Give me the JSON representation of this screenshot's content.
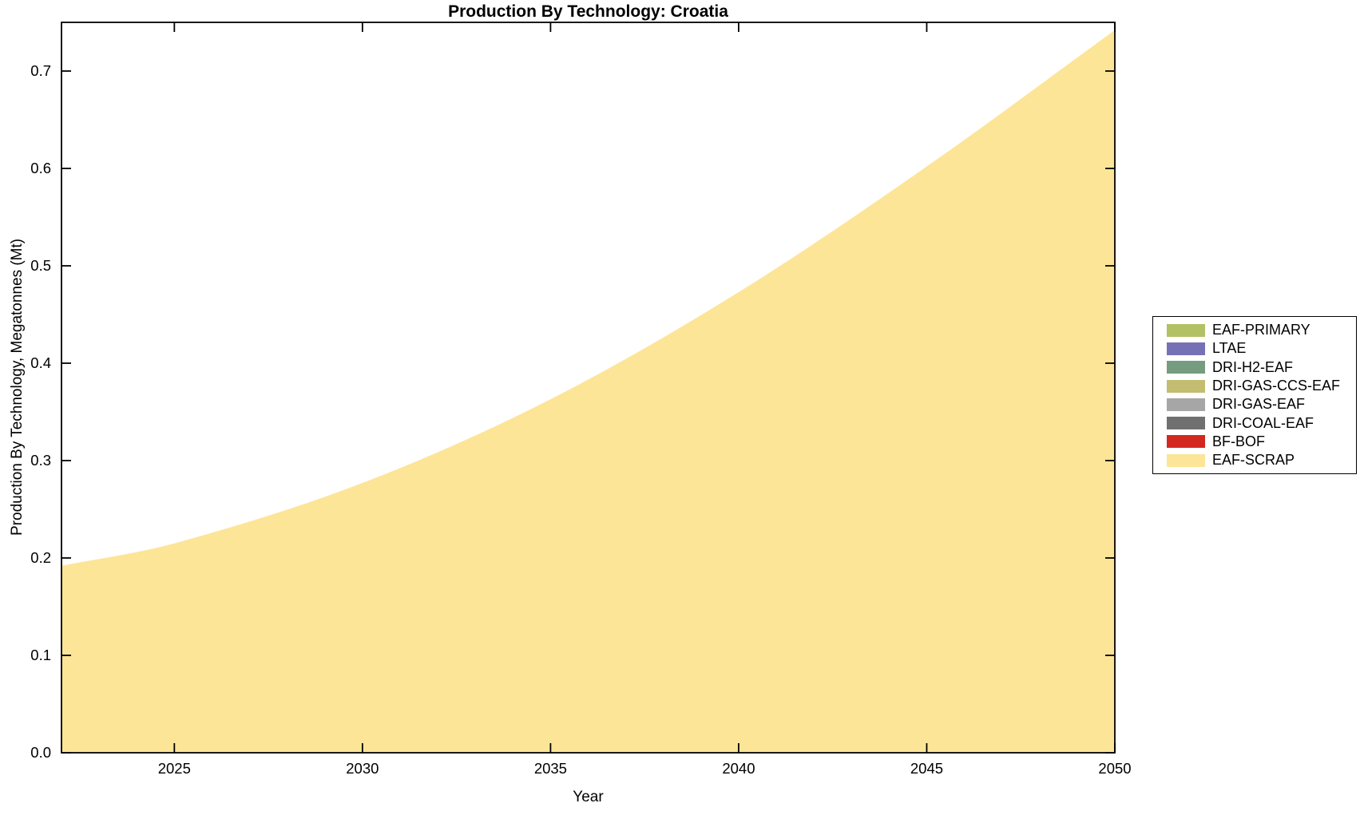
{
  "title": "Production By Technology: Croatia",
  "axes": {
    "xlabel": "Year",
    "ylabel": "Production By Technology, Megatonnes (Mt)",
    "x_ticks": [
      "2025",
      "2030",
      "2035",
      "2040",
      "2045",
      "2050"
    ],
    "y_ticks": [
      "0.0",
      "0.1",
      "0.2",
      "0.3",
      "0.4",
      "0.5",
      "0.6",
      "0.7"
    ]
  },
  "legend": {
    "items": [
      {
        "label": "EAF-PRIMARY",
        "color": "#B2C164"
      },
      {
        "label": "LTAE",
        "color": "#7671B7"
      },
      {
        "label": "DRI-H2-EAF",
        "color": "#759C7F"
      },
      {
        "label": "DRI-GAS-CCS-EAF",
        "color": "#C2BD70"
      },
      {
        "label": "DRI-GAS-EAF",
        "color": "#A6A6A6"
      },
      {
        "label": "DRI-COAL-EAF",
        "color": "#707070"
      },
      {
        "label": "BF-BOF",
        "color": "#D22820"
      },
      {
        "label": "EAF-SCRAP",
        "color": "#FDE598"
      }
    ]
  },
  "chart_data": {
    "type": "area",
    "title": "Production By Technology: Croatia",
    "xlabel": "Year",
    "ylabel": "Production By Technology, Megatonnes (Mt)",
    "x": [
      2022,
      2025,
      2030,
      2035,
      2040,
      2045,
      2050
    ],
    "series": [
      {
        "name": "EAF-PRIMARY",
        "color": "#B2C164",
        "values": [
          0,
          0,
          0,
          0,
          0,
          0,
          0
        ]
      },
      {
        "name": "LTAE",
        "color": "#7671B7",
        "values": [
          0,
          0,
          0,
          0,
          0,
          0,
          0
        ]
      },
      {
        "name": "DRI-H2-EAF",
        "color": "#759C7F",
        "values": [
          0,
          0,
          0,
          0,
          0,
          0,
          0
        ]
      },
      {
        "name": "DRI-GAS-CCS-EAF",
        "color": "#C2BD70",
        "values": [
          0,
          0,
          0,
          0,
          0,
          0,
          0
        ]
      },
      {
        "name": "DRI-GAS-EAF",
        "color": "#A6A6A6",
        "values": [
          0,
          0,
          0,
          0,
          0,
          0,
          0
        ]
      },
      {
        "name": "DRI-COAL-EAF",
        "color": "#707070",
        "values": [
          0,
          0,
          0,
          0,
          0,
          0,
          0
        ]
      },
      {
        "name": "BF-BOF",
        "color": "#D22820",
        "values": [
          0,
          0,
          0,
          0,
          0,
          0,
          0
        ]
      },
      {
        "name": "EAF-SCRAP",
        "color": "#FDE598",
        "values": [
          0.192,
          0.215,
          0.277,
          0.363,
          0.473,
          0.602,
          0.742
        ]
      }
    ],
    "xlim": [
      2022,
      2050
    ],
    "ylim": [
      0,
      0.75
    ],
    "grid": false,
    "legend_position": "right-outside",
    "stacked": true
  }
}
